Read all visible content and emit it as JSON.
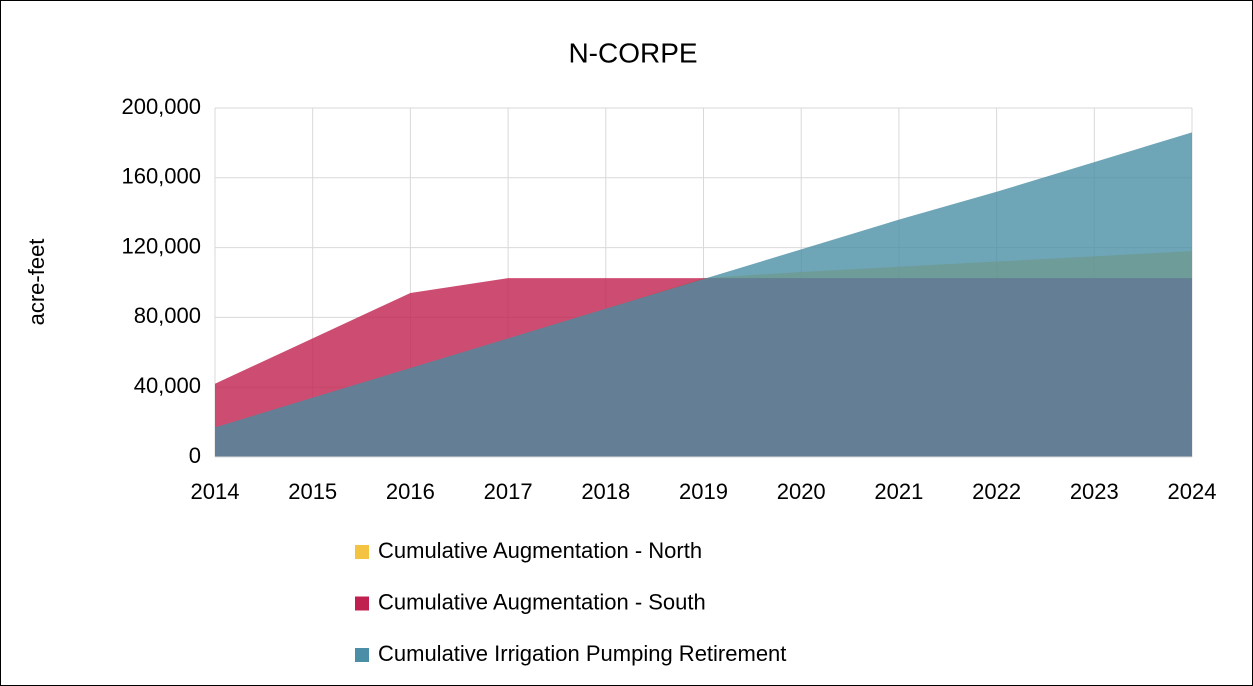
{
  "chart_data": {
    "type": "area",
    "title": "N-CORPE",
    "y_label": "acre-feet",
    "x": [
      2014,
      2015,
      2016,
      2017,
      2018,
      2019,
      2020,
      2021,
      2022,
      2023,
      2024
    ],
    "xlim": [
      2014,
      2024
    ],
    "xticks": [
      2014,
      2015,
      2016,
      2017,
      2018,
      2019,
      2020,
      2021,
      2022,
      2023,
      2024
    ],
    "ylim": [
      0,
      200000
    ],
    "yticks": [
      0,
      {
        "value": 40000,
        "label": "40,000"
      },
      {
        "value": 80000,
        "label": "80,000"
      },
      {
        "value": 120000,
        "label": "120,000"
      },
      {
        "value": 160000,
        "label": "160,000"
      },
      {
        "value": 200000,
        "label": "200,000"
      }
    ],
    "grid": true,
    "series": [
      {
        "name": "Cumulative Augmentation - North",
        "color": "#f5c342",
        "values": [
          17000,
          34000,
          51000,
          68000,
          85000,
          102500,
          106000,
          109000,
          112000,
          115000,
          118000
        ]
      },
      {
        "name": "Cumulative Augmentation - South",
        "color": "#c0204f",
        "values": [
          42000,
          68000,
          94000,
          102500,
          102500,
          102500,
          102500,
          102500,
          102500,
          102500,
          102500
        ]
      },
      {
        "name": "Cumulative Irrigation Pumping Retirement",
        "color": "#4a8fa5",
        "values": [
          17000,
          34000,
          51000,
          68000,
          85000,
          102000,
          119000,
          136000,
          152000,
          169000,
          186000
        ]
      }
    ]
  }
}
